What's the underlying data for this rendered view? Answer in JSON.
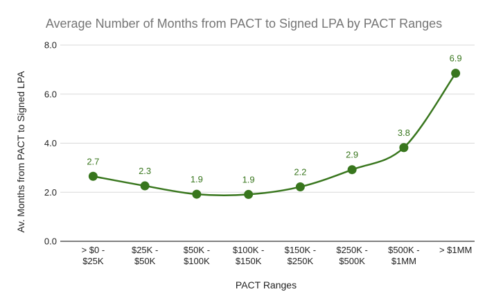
{
  "chart_data": {
    "type": "line",
    "title": "Average Number of Months from PACT to Signed LPA by PACT Ranges",
    "xlabel": "PACT Ranges",
    "ylabel": "Av. Months from PACT to Signed LPA",
    "ylim": [
      0,
      8
    ],
    "yticks": [
      "0.0",
      "2.0",
      "4.0",
      "6.0",
      "8.0"
    ],
    "ytick_values": [
      0,
      2,
      4,
      6,
      8
    ],
    "grid": true,
    "legend": "none",
    "smooth": true,
    "categories": [
      [
        "> $0 -",
        "$25K"
      ],
      [
        "$25K -",
        "$50K"
      ],
      [
        "$50K -",
        "$100K"
      ],
      [
        "$100K -",
        "$150K"
      ],
      [
        "$150K -",
        "$250K"
      ],
      [
        "$250K -",
        "$500K"
      ],
      [
        "$500K -",
        "$1MM"
      ],
      [
        "> $1MM"
      ]
    ],
    "series": [
      {
        "values": [
          2.65,
          2.26,
          1.92,
          1.91,
          2.22,
          2.92,
          3.82,
          6.85
        ],
        "labels": [
          "2.7",
          "2.3",
          "1.9",
          "1.9",
          "2.2",
          "2.9",
          "3.8",
          "6.9"
        ],
        "color": "#38761d"
      }
    ]
  }
}
